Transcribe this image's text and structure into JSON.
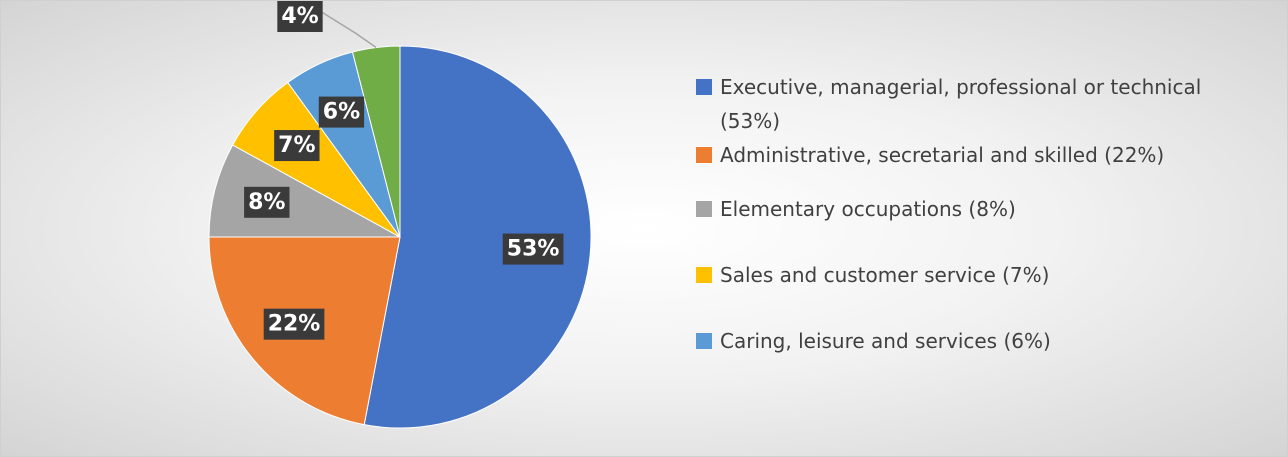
{
  "chart_data": {
    "type": "pie",
    "categories": [
      "Executive, managerial, professional or technical (53%)",
      "Administrative, secretarial and skilled (22%)",
      "Elementary occupations (8%)",
      "Sales and customer service (7%)",
      "Caring, leisure and services (6%)",
      null
    ],
    "values": [
      53,
      22,
      8,
      7,
      6,
      4
    ],
    "value_labels": [
      "53%",
      "22%",
      "8%",
      "7%",
      "6%",
      "4%"
    ],
    "colors": [
      "#4472c4",
      "#ed7d31",
      "#a5a5a5",
      "#ffc000",
      "#5b9bd5",
      "#70ad47"
    ],
    "legend": "right"
  }
}
